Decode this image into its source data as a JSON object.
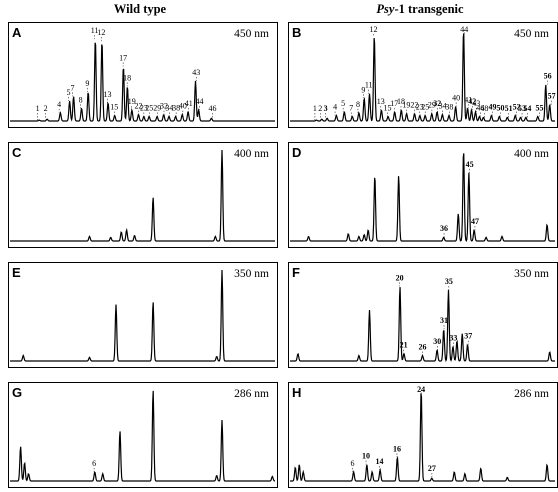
{
  "column_titles": {
    "left": "Wild type",
    "right_italic": "Psy",
    "right_rest": "-1 transgenic"
  },
  "chart_data": [
    {
      "type": "line",
      "panel": "A",
      "wavelength": "450 nm",
      "peaks": [
        {
          "label": "1",
          "rt": 0.11,
          "h": 0.01,
          "bold": false
        },
        {
          "label": "2",
          "rt": 0.14,
          "h": 0.02,
          "bold": false
        },
        {
          "label": "4",
          "rt": 0.19,
          "h": 0.09,
          "bold": false
        },
        {
          "label": "5",
          "rt": 0.225,
          "h": 0.22,
          "bold": false
        },
        {
          "label": "7",
          "rt": 0.24,
          "h": 0.27,
          "bold": false
        },
        {
          "label": "8",
          "rt": 0.27,
          "h": 0.14,
          "bold": false
        },
        {
          "label": "9",
          "rt": 0.295,
          "h": 0.32,
          "bold": false
        },
        {
          "label": "11",
          "rt": 0.322,
          "h": 0.9,
          "bold": false
        },
        {
          "label": "12",
          "rt": 0.347,
          "h": 0.88,
          "bold": false
        },
        {
          "label": "13",
          "rt": 0.37,
          "h": 0.2,
          "bold": false
        },
        {
          "label": "15",
          "rt": 0.395,
          "h": 0.06,
          "bold": false
        },
        {
          "label": "17",
          "rt": 0.428,
          "h": 0.6,
          "bold": false
        },
        {
          "label": "18",
          "rt": 0.443,
          "h": 0.38,
          "bold": false
        },
        {
          "label": "19",
          "rt": 0.46,
          "h": 0.12,
          "bold": false
        },
        {
          "label": "22",
          "rt": 0.485,
          "h": 0.07,
          "bold": false
        },
        {
          "label": "23",
          "rt": 0.505,
          "h": 0.05,
          "bold": false
        },
        {
          "label": "25",
          "rt": 0.525,
          "h": 0.05,
          "bold": false
        },
        {
          "label": "29",
          "rt": 0.555,
          "h": 0.05,
          "bold": false
        },
        {
          "label": "32",
          "rt": 0.58,
          "h": 0.07,
          "bold": false
        },
        {
          "label": "34",
          "rt": 0.6,
          "h": 0.05,
          "bold": false
        },
        {
          "label": "38",
          "rt": 0.625,
          "h": 0.05,
          "bold": false
        },
        {
          "label": "40",
          "rt": 0.65,
          "h": 0.07,
          "bold": false
        },
        {
          "label": "41",
          "rt": 0.672,
          "h": 0.1,
          "bold": false
        },
        {
          "label": "43",
          "rt": 0.7,
          "h": 0.44,
          "bold": false
        },
        {
          "label": "44",
          "rt": 0.712,
          "h": 0.12,
          "bold": false
        },
        {
          "label": "46",
          "rt": 0.76,
          "h": 0.03,
          "bold": false
        }
      ]
    },
    {
      "type": "line",
      "panel": "B",
      "wavelength": "450 nm",
      "peaks": [
        {
          "label": "1",
          "rt": 0.1,
          "h": 0.01,
          "bold": false
        },
        {
          "label": "2",
          "rt": 0.12,
          "h": 0.02,
          "bold": false
        },
        {
          "label": "3",
          "rt": 0.14,
          "h": 0.03,
          "bold": true
        },
        {
          "label": "4",
          "rt": 0.175,
          "h": 0.06,
          "bold": false
        },
        {
          "label": "5",
          "rt": 0.205,
          "h": 0.1,
          "bold": false
        },
        {
          "label": "7",
          "rt": 0.235,
          "h": 0.05,
          "bold": false
        },
        {
          "label": "8",
          "rt": 0.26,
          "h": 0.09,
          "bold": false
        },
        {
          "label": "9",
          "rt": 0.28,
          "h": 0.25,
          "bold": false
        },
        {
          "label": "11",
          "rt": 0.3,
          "h": 0.3,
          "bold": false
        },
        {
          "label": "12",
          "rt": 0.318,
          "h": 0.94,
          "bold": false
        },
        {
          "label": "13",
          "rt": 0.345,
          "h": 0.12,
          "bold": false
        },
        {
          "label": "15",
          "rt": 0.37,
          "h": 0.05,
          "bold": false
        },
        {
          "label": "17",
          "rt": 0.395,
          "h": 0.1,
          "bold": false
        },
        {
          "label": "18",
          "rt": 0.42,
          "h": 0.12,
          "bold": false
        },
        {
          "label": "19",
          "rt": 0.44,
          "h": 0.08,
          "bold": false
        },
        {
          "label": "22",
          "rt": 0.47,
          "h": 0.08,
          "bold": false
        },
        {
          "label": "23",
          "rt": 0.49,
          "h": 0.06,
          "bold": false
        },
        {
          "label": "25",
          "rt": 0.51,
          "h": 0.06,
          "bold": false
        },
        {
          "label": "29",
          "rt": 0.535,
          "h": 0.08,
          "bold": false
        },
        {
          "label": "32",
          "rt": 0.555,
          "h": 0.1,
          "bold": true
        },
        {
          "label": "34",
          "rt": 0.575,
          "h": 0.07,
          "bold": false
        },
        {
          "label": "38",
          "rt": 0.6,
          "h": 0.06,
          "bold": false
        },
        {
          "label": "40",
          "rt": 0.625,
          "h": 0.16,
          "bold": false
        },
        {
          "label": "44",
          "rt": 0.655,
          "h": 1.0,
          "bold": false
        },
        {
          "label": "41",
          "rt": 0.67,
          "h": 0.14,
          "bold": false
        },
        {
          "label": "42",
          "rt": 0.685,
          "h": 0.12,
          "bold": true
        },
        {
          "label": "43",
          "rt": 0.7,
          "h": 0.1,
          "bold": false
        },
        {
          "label": "46",
          "rt": 0.715,
          "h": 0.05,
          "bold": false
        },
        {
          "label": "48",
          "rt": 0.73,
          "h": 0.04,
          "bold": false
        },
        {
          "label": "49",
          "rt": 0.76,
          "h": 0.06,
          "bold": true
        },
        {
          "label": "50",
          "rt": 0.79,
          "h": 0.05,
          "bold": true
        },
        {
          "label": "51",
          "rt": 0.82,
          "h": 0.04,
          "bold": true
        },
        {
          "label": "52",
          "rt": 0.85,
          "h": 0.06,
          "bold": true
        },
        {
          "label": "53",
          "rt": 0.87,
          "h": 0.04,
          "bold": true
        },
        {
          "label": "54",
          "rt": 0.89,
          "h": 0.04,
          "bold": true
        },
        {
          "label": "55",
          "rt": 0.935,
          "h": 0.05,
          "bold": true
        },
        {
          "label": "56",
          "rt": 0.965,
          "h": 0.4,
          "bold": true
        },
        {
          "label": "57",
          "rt": 0.98,
          "h": 0.18,
          "bold": true
        }
      ]
    },
    {
      "type": "line",
      "panel": "C",
      "wavelength": "400 nm",
      "peaks": [
        {
          "label": "",
          "rt": 0.3,
          "h": 0.05,
          "bold": false
        },
        {
          "label": "",
          "rt": 0.38,
          "h": 0.04,
          "bold": false
        },
        {
          "label": "",
          "rt": 0.42,
          "h": 0.1,
          "bold": false
        },
        {
          "label": "",
          "rt": 0.44,
          "h": 0.12,
          "bold": false
        },
        {
          "label": "",
          "rt": 0.47,
          "h": 0.06,
          "bold": false
        },
        {
          "label": "",
          "rt": 0.54,
          "h": 0.48,
          "bold": false
        },
        {
          "label": "",
          "rt": 0.775,
          "h": 0.05,
          "bold": false
        },
        {
          "label": "",
          "rt": 0.8,
          "h": 1.0,
          "bold": false
        }
      ]
    },
    {
      "type": "line",
      "panel": "D",
      "wavelength": "400 nm",
      "peaks": [
        {
          "label": "",
          "rt": 0.07,
          "h": 0.05,
          "bold": false
        },
        {
          "label": "",
          "rt": 0.22,
          "h": 0.08,
          "bold": false
        },
        {
          "label": "",
          "rt": 0.26,
          "h": 0.05,
          "bold": false
        },
        {
          "label": "",
          "rt": 0.28,
          "h": 0.07,
          "bold": false
        },
        {
          "label": "",
          "rt": 0.295,
          "h": 0.12,
          "bold": false
        },
        {
          "label": "",
          "rt": 0.32,
          "h": 0.72,
          "bold": false
        },
        {
          "label": "",
          "rt": 0.41,
          "h": 0.72,
          "bold": false
        },
        {
          "label": "36",
          "rt": 0.58,
          "h": 0.04,
          "bold": true
        },
        {
          "label": "",
          "rt": 0.635,
          "h": 0.3,
          "bold": false
        },
        {
          "label": "",
          "rt": 0.655,
          "h": 1.0,
          "bold": false
        },
        {
          "label": "45",
          "rt": 0.675,
          "h": 0.75,
          "bold": true
        },
        {
          "label": "47",
          "rt": 0.695,
          "h": 0.12,
          "bold": true
        },
        {
          "label": "",
          "rt": 0.74,
          "h": 0.04,
          "bold": false
        },
        {
          "label": "",
          "rt": 0.8,
          "h": 0.05,
          "bold": false
        },
        {
          "label": "",
          "rt": 0.97,
          "h": 0.18,
          "bold": false
        }
      ]
    },
    {
      "type": "line",
      "panel": "E",
      "wavelength": "350 nm",
      "peaks": [
        {
          "label": "",
          "rt": 0.05,
          "h": 0.06,
          "bold": false
        },
        {
          "label": "",
          "rt": 0.3,
          "h": 0.04,
          "bold": false
        },
        {
          "label": "",
          "rt": 0.4,
          "h": 0.62,
          "bold": false
        },
        {
          "label": "",
          "rt": 0.54,
          "h": 0.65,
          "bold": false
        },
        {
          "label": "",
          "rt": 0.78,
          "h": 0.05,
          "bold": false
        },
        {
          "label": "",
          "rt": 0.8,
          "h": 1.0,
          "bold": false
        }
      ]
    },
    {
      "type": "line",
      "panel": "F",
      "wavelength": "350 nm",
      "peaks": [
        {
          "label": "",
          "rt": 0.03,
          "h": 0.08,
          "bold": false
        },
        {
          "label": "",
          "rt": 0.26,
          "h": 0.06,
          "bold": false
        },
        {
          "label": "",
          "rt": 0.3,
          "h": 0.56,
          "bold": false
        },
        {
          "label": "20",
          "rt": 0.415,
          "h": 0.82,
          "bold": true
        },
        {
          "label": "21",
          "rt": 0.43,
          "h": 0.08,
          "bold": true
        },
        {
          "label": "26",
          "rt": 0.5,
          "h": 0.06,
          "bold": true
        },
        {
          "label": "30",
          "rt": 0.555,
          "h": 0.12,
          "bold": true
        },
        {
          "label": "31",
          "rt": 0.58,
          "h": 0.35,
          "bold": true
        },
        {
          "label": "35",
          "rt": 0.598,
          "h": 0.78,
          "bold": true
        },
        {
          "label": "33",
          "rt": 0.615,
          "h": 0.16,
          "bold": true
        },
        {
          "label": "",
          "rt": 0.63,
          "h": 0.22,
          "bold": false
        },
        {
          "label": "",
          "rt": 0.65,
          "h": 0.3,
          "bold": false
        },
        {
          "label": "37",
          "rt": 0.67,
          "h": 0.18,
          "bold": true
        },
        {
          "label": "",
          "rt": 0.98,
          "h": 0.1,
          "bold": false
        }
      ]
    },
    {
      "type": "line",
      "panel": "G",
      "wavelength": "286 nm",
      "peaks": [
        {
          "label": "",
          "rt": 0.04,
          "h": 0.38,
          "bold": false
        },
        {
          "label": "",
          "rt": 0.055,
          "h": 0.2,
          "bold": false
        },
        {
          "label": "",
          "rt": 0.07,
          "h": 0.08,
          "bold": false
        },
        {
          "label": "6",
          "rt": 0.32,
          "h": 0.1,
          "bold": false
        },
        {
          "label": "",
          "rt": 0.35,
          "h": 0.08,
          "bold": false
        },
        {
          "label": "",
          "rt": 0.415,
          "h": 0.55,
          "bold": false
        },
        {
          "label": "",
          "rt": 0.54,
          "h": 1.0,
          "bold": false
        },
        {
          "label": "",
          "rt": 0.78,
          "h": 0.06,
          "bold": false
        },
        {
          "label": "",
          "rt": 0.8,
          "h": 0.67,
          "bold": false
        },
        {
          "label": "",
          "rt": 0.99,
          "h": 0.05,
          "bold": false
        }
      ]
    },
    {
      "type": "line",
      "panel": "H",
      "wavelength": "286 nm",
      "peaks": [
        {
          "label": "",
          "rt": 0.02,
          "h": 0.15,
          "bold": false
        },
        {
          "label": "",
          "rt": 0.035,
          "h": 0.18,
          "bold": false
        },
        {
          "label": "",
          "rt": 0.05,
          "h": 0.1,
          "bold": false
        },
        {
          "label": "6",
          "rt": 0.24,
          "h": 0.1,
          "bold": false
        },
        {
          "label": "10",
          "rt": 0.29,
          "h": 0.18,
          "bold": true
        },
        {
          "label": "",
          "rt": 0.31,
          "h": 0.1,
          "bold": false
        },
        {
          "label": "14",
          "rt": 0.34,
          "h": 0.12,
          "bold": true
        },
        {
          "label": "16",
          "rt": 0.405,
          "h": 0.26,
          "bold": true
        },
        {
          "label": "24",
          "rt": 0.495,
          "h": 1.0,
          "bold": true
        },
        {
          "label": "27",
          "rt": 0.535,
          "h": 0.03,
          "bold": true
        },
        {
          "label": "",
          "rt": 0.62,
          "h": 0.1,
          "bold": false
        },
        {
          "label": "",
          "rt": 0.66,
          "h": 0.08,
          "bold": false
        },
        {
          "label": "",
          "rt": 0.72,
          "h": 0.14,
          "bold": false
        },
        {
          "label": "",
          "rt": 0.82,
          "h": 0.04,
          "bold": false
        },
        {
          "label": "",
          "rt": 0.97,
          "h": 0.18,
          "bold": false
        }
      ]
    }
  ]
}
